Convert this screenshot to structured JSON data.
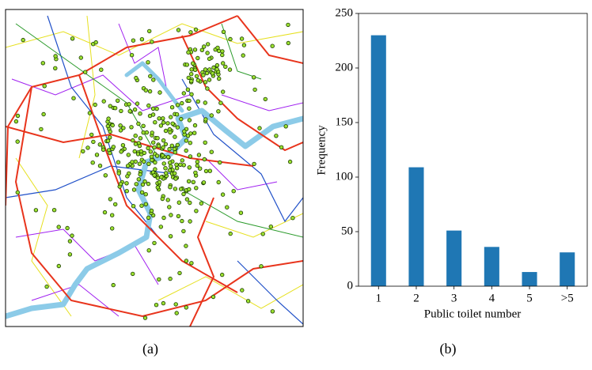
{
  "chart_data": {
    "type": "bar",
    "x_label": "Public toilet number",
    "y_label": "Frequency",
    "categories": [
      "1",
      "2",
      "3",
      "4",
      "5",
      ">5"
    ],
    "values": [
      230,
      109,
      51,
      36,
      13,
      31
    ],
    "color": "#1f77b4",
    "ylim": [
      0,
      250
    ],
    "yticks": [
      0,
      50,
      100,
      150,
      200,
      250
    ],
    "grid": false
  },
  "captions": [
    "(a)",
    "(b)"
  ]
}
